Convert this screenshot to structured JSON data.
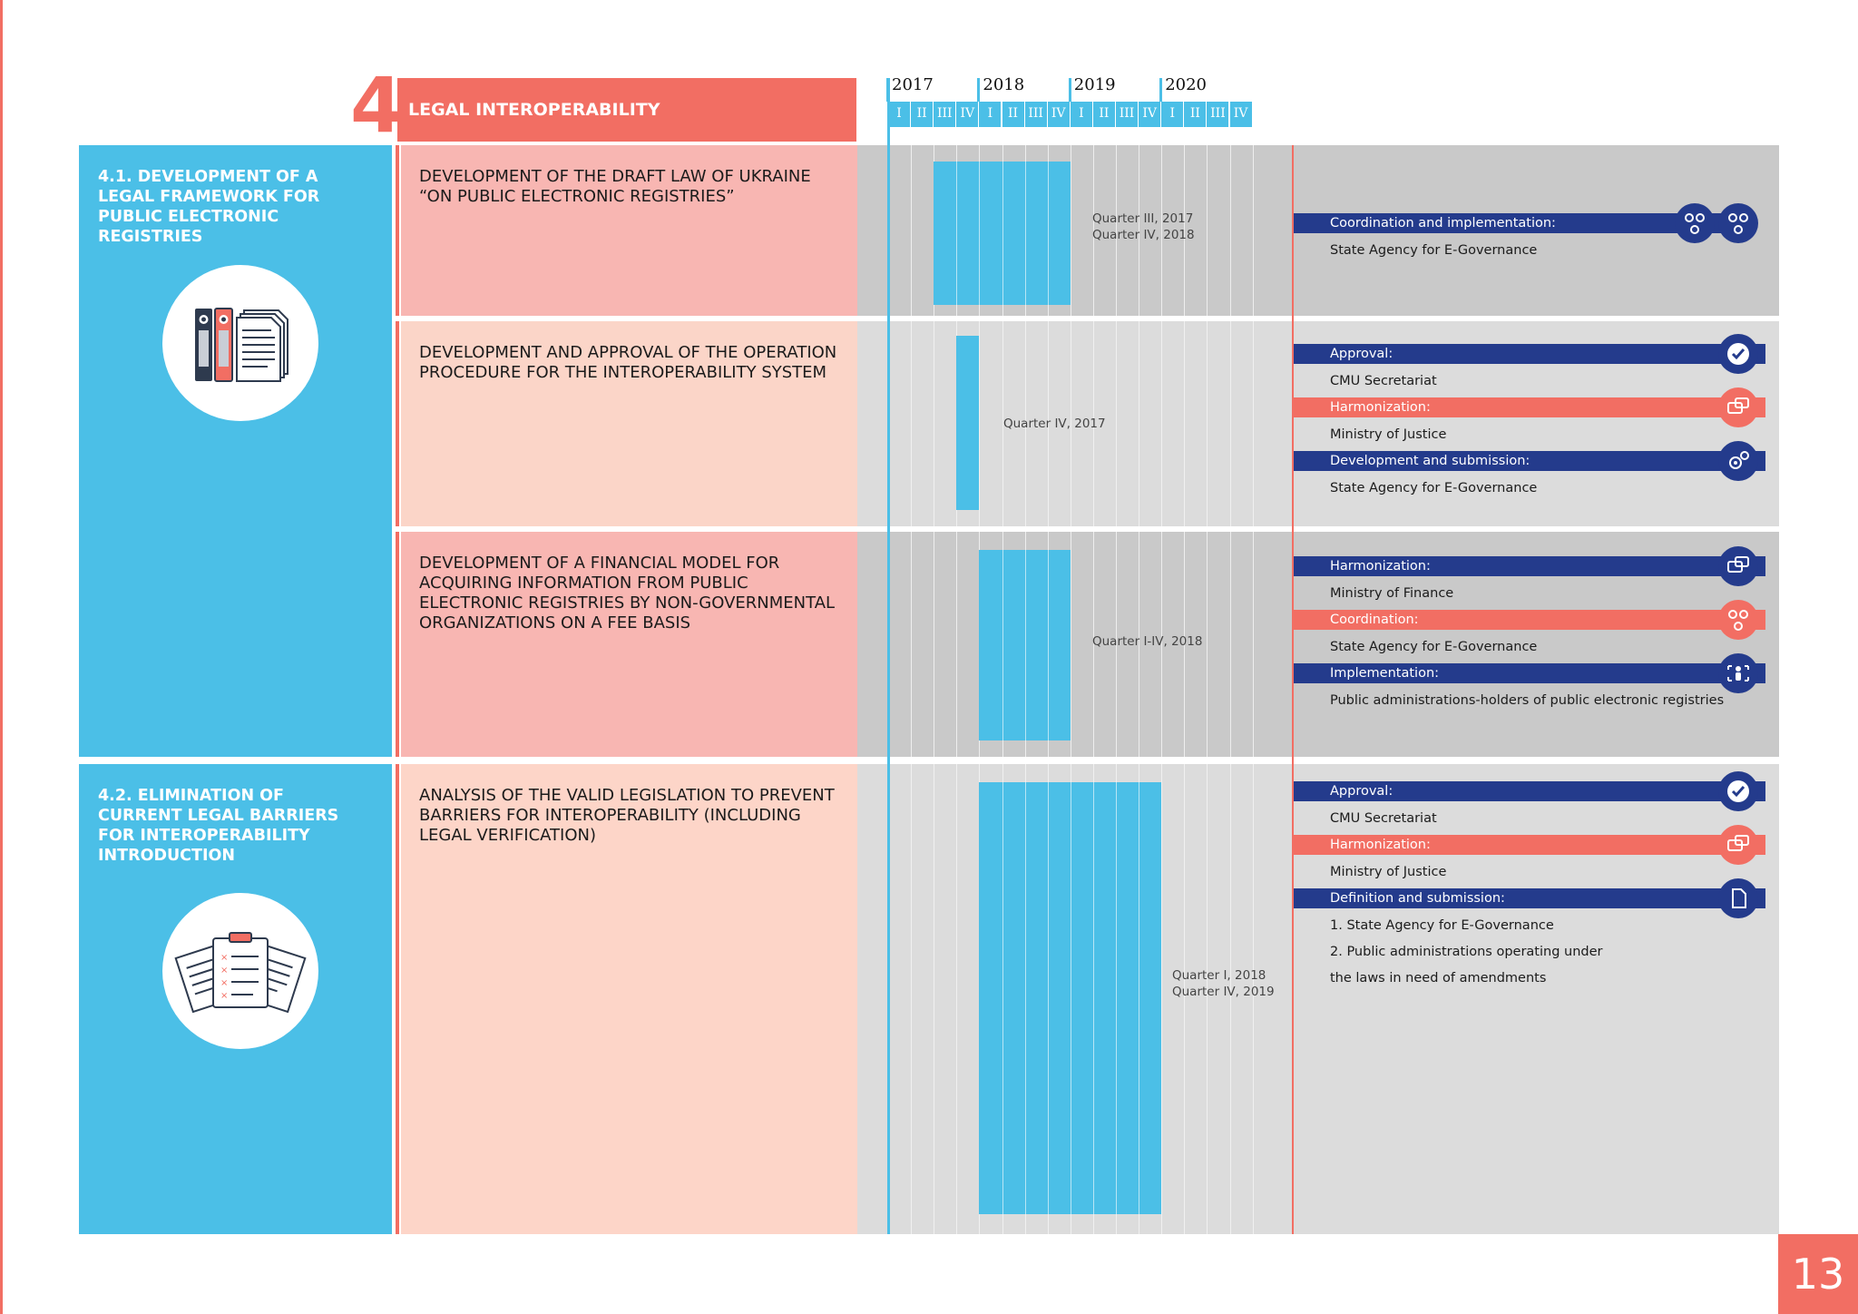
{
  "section": {
    "number": "4",
    "title": "LEGAL INTEROPERABILITY"
  },
  "timeline": {
    "years": [
      "2017",
      "2018",
      "2019",
      "2020"
    ],
    "quarters": [
      "I",
      "II",
      "III",
      "IV"
    ]
  },
  "goals": [
    {
      "title": "4.1. DEVELOPMENT OF A LEGAL FRAMEWORK FOR PUBLIC ELECTRONIC REGISTRIES",
      "icon": "binders-documents-icon"
    },
    {
      "title": "4.2. ELIMINATION OF CURRENT LEGAL BARRIERS FOR INTEROPERABILITY INTRODUCTION",
      "icon": "clipboard-documents-icon"
    }
  ],
  "tasks": [
    {
      "title": "DEVELOPMENT OF THE DRAFT LAW OF UKRAINE “ON PUBLIC ELECTRONIC REGISTRIES”",
      "period": [
        "Quarter III, 2017",
        "Quarter IV, 2018"
      ],
      "start_quarter": "2017-III",
      "end_quarter": "2018-IV",
      "responsible": [
        {
          "role": "Coordination and implementation:",
          "entity": [
            "State Agency for E-Governance"
          ],
          "color": "blue",
          "icon": "people-network-icon"
        }
      ]
    },
    {
      "title": "DEVELOPMENT AND APPROVAL OF THE OPERATION PROCEDURE FOR THE INTEROPERABILITY SYSTEM",
      "period": [
        "Quarter IV, 2017"
      ],
      "start_quarter": "2017-IV",
      "end_quarter": "2017-IV",
      "responsible": [
        {
          "role": "Approval:",
          "entity": [
            "CMU Secretariat"
          ],
          "color": "blue",
          "icon": "checkmark-icon"
        },
        {
          "role": "Harmonization:",
          "entity": [
            "Ministry of Justice"
          ],
          "color": "red",
          "icon": "chat-bubbles-icon"
        },
        {
          "role": "Development and submission:",
          "entity": [
            "State Agency for E-Governance"
          ],
          "color": "blue",
          "icon": "gears-icon"
        }
      ]
    },
    {
      "title": "DEVELOPMENT OF A FINANCIAL MODEL FOR ACQUIRING INFORMATION FROM PUBLIC ELECTRONIC REGISTRIES BY NON-GOVERNMENTAL ORGANIZATIONS ON A FEE BASIS",
      "period": [
        "Quarter I-IV, 2018"
      ],
      "start_quarter": "2018-I",
      "end_quarter": "2018-IV",
      "responsible": [
        {
          "role": "Harmonization:",
          "entity": [
            "Ministry of Finance"
          ],
          "color": "blue",
          "icon": "chat-bubbles-icon"
        },
        {
          "role": "Coordination:",
          "entity": [
            "State Agency for E-Governance"
          ],
          "color": "red",
          "icon": "people-network-icon"
        },
        {
          "role": "Implementation:",
          "entity": [
            "Public administrations-holders of public electronic registries"
          ],
          "color": "blue",
          "icon": "person-arrows-icon"
        }
      ]
    },
    {
      "title": "ANALYSIS OF THE VALID LEGISLATION TO PREVENT BARRIERS FOR INTEROPERABILITY (INCLUDING LEGAL VERIFICATION)",
      "period": [
        "Quarter I, 2018",
        "Quarter IV, 2019"
      ],
      "start_quarter": "2018-I",
      "end_quarter": "2019-IV",
      "responsible": [
        {
          "role": "Approval:",
          "entity": [
            "CMU Secretariat"
          ],
          "color": "blue",
          "icon": "checkmark-icon"
        },
        {
          "role": "Harmonization:",
          "entity": [
            "Ministry of Justice"
          ],
          "color": "red",
          "icon": "chat-bubbles-icon"
        },
        {
          "role": "Definition and submission:",
          "entity": [
            "1. State Agency for E-Governance",
            "2. Public administrations operating under",
            "the laws in need of amendments"
          ],
          "color": "blue",
          "icon": "document-icon"
        }
      ]
    }
  ],
  "page_number": "13",
  "colors": {
    "accent_red": "#f26e63",
    "accent_blue": "#4bbfe7",
    "navy": "#243b8c"
  }
}
